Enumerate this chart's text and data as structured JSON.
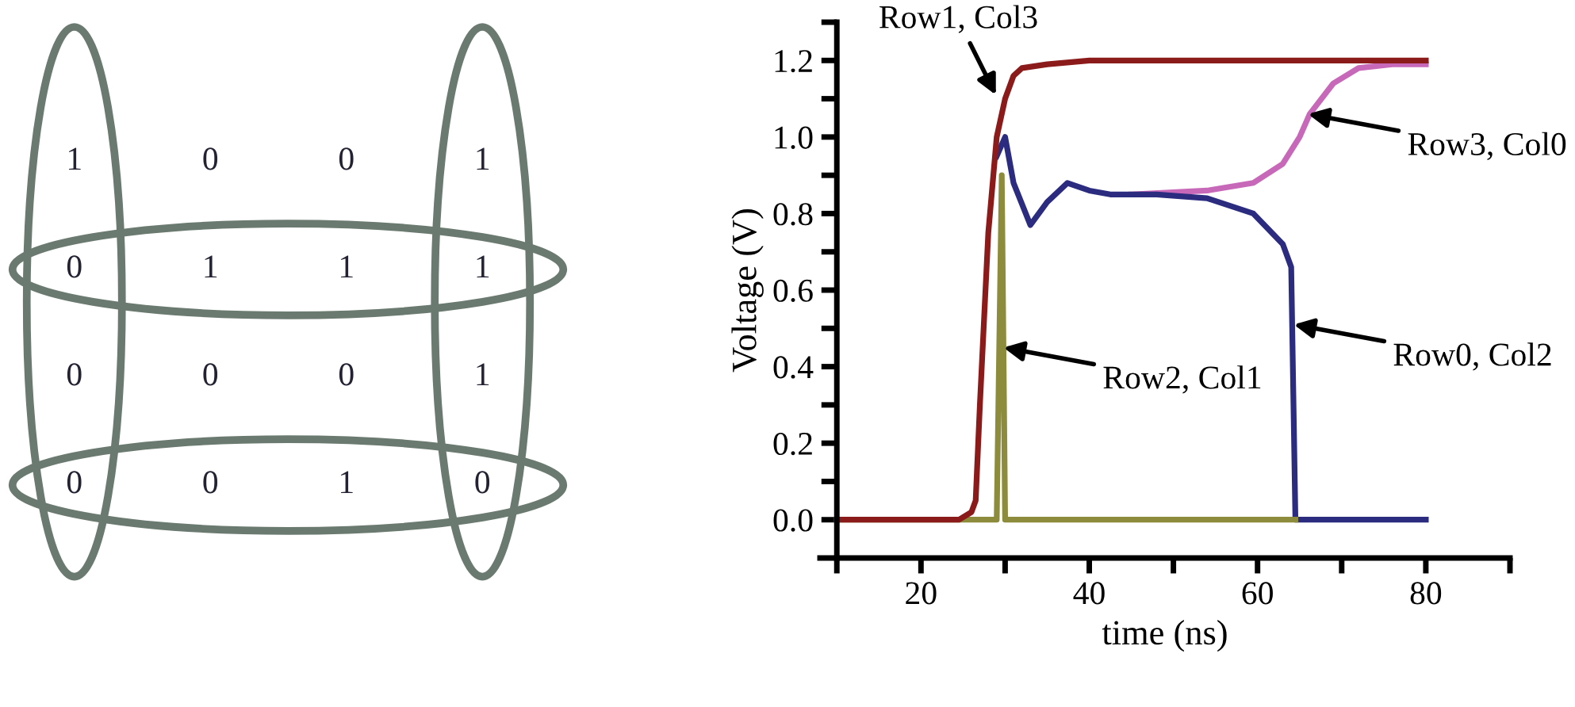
{
  "chart_data": [
    {
      "type": "heatmap",
      "categories": [
        null,
        null,
        null,
        null
      ],
      "y_categories": [
        null,
        null,
        null,
        null
      ],
      "cells": [
        [
          1,
          0,
          0,
          1
        ],
        [
          0,
          1,
          1,
          1
        ],
        [
          0,
          0,
          0,
          1
        ],
        [
          0,
          0,
          1,
          0
        ]
      ],
      "data_labels": true
    },
    {
      "type": "line",
      "xlabel": "time (ns)",
      "ylabel": "Voltage (V)",
      "xlim": [
        8,
        90
      ],
      "ylim": [
        -0.1,
        1.3
      ],
      "xticks": [
        {
          "value": 10,
          "label": null
        },
        20,
        {
          "value": 30,
          "label": null
        },
        40,
        {
          "value": 50,
          "label": null
        },
        60,
        {
          "value": 70,
          "label": null
        },
        80,
        {
          "value": 90,
          "label": null
        }
      ],
      "yticks": [
        {
          "value": 0,
          "label": "0.0"
        },
        {
          "value": 0.1,
          "label": null
        },
        {
          "value": 0.2,
          "label": "0.2"
        },
        {
          "value": 0.3,
          "label": null
        },
        {
          "value": 0.4,
          "label": "0.4"
        },
        {
          "value": 0.5,
          "label": null
        },
        {
          "value": 0.6,
          "label": "0.6"
        },
        {
          "value": 0.7,
          "label": null
        },
        {
          "value": 0.8,
          "label": "0.8"
        },
        {
          "value": 0.9,
          "label": null
        },
        {
          "value": 1.0,
          "label": "1.0"
        },
        {
          "value": 1.1,
          "label": null
        },
        {
          "value": 1.2,
          "label": "1.2"
        },
        {
          "value": 1.3,
          "label": null
        }
      ],
      "grid": false,
      "marker": "none",
      "line_style": "solid",
      "series": [
        {
          "color": "#c868b8",
          "x": [
            45,
            54,
            59.5,
            63,
            65,
            66.2,
            69,
            72,
            76,
            80
          ],
          "values": [
            0.85,
            0.86,
            0.88,
            0.93,
            1.0,
            1.06,
            1.14,
            1.18,
            1.19,
            1.19
          ]
        },
        {
          "color": "#2b2b80",
          "x": [
            29,
            30,
            31,
            33,
            35,
            37.4,
            40,
            42.5,
            48,
            54,
            59.5,
            63,
            64,
            64.5,
            70,
            80
          ],
          "values": [
            0.95,
            1.0,
            0.88,
            0.77,
            0.83,
            0.88,
            0.86,
            0.85,
            0.85,
            0.84,
            0.8,
            0.72,
            0.66,
            0,
            0,
            0
          ]
        },
        {
          "color": "#8c8c3c",
          "x": [
            10,
            29,
            29.6,
            30.0,
            64.5
          ],
          "values": [
            0,
            0,
            0.9,
            0,
            0
          ]
        },
        {
          "color": "#8b1a1a",
          "x": [
            10,
            24.5,
            26,
            26.5,
            27,
            28,
            29,
            30,
            31,
            32,
            35,
            40,
            80
          ],
          "values": [
            0,
            0,
            0.02,
            0.05,
            0.3,
            0.75,
            1.0,
            1.1,
            1.16,
            1.18,
            1.19,
            1.2,
            1.2
          ]
        }
      ],
      "annotations": [
        {
          "text": "Row1, Col3",
          "x": 28.9,
          "y": 1.11
        },
        {
          "text": "Row3, Col0",
          "x": 66,
          "y": 1.06
        },
        {
          "text": "Row0, Col2",
          "x": 64.3,
          "y": 0.51
        },
        {
          "text": "Row2, Col1",
          "x": 29.8,
          "y": 0.45
        }
      ]
    }
  ]
}
